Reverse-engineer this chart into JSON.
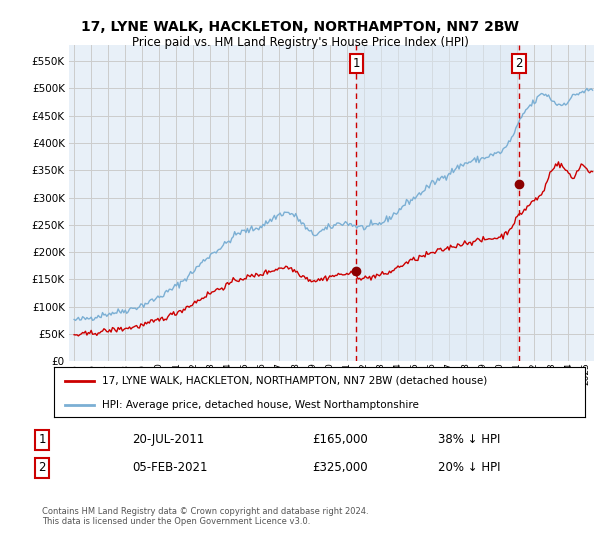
{
  "title": "17, LYNE WALK, HACKLETON, NORTHAMPTON, NN7 2BW",
  "subtitle": "Price paid vs. HM Land Registry's House Price Index (HPI)",
  "legend_line1": "17, LYNE WALK, HACKLETON, NORTHAMPTON, NN7 2BW (detached house)",
  "legend_line2": "HPI: Average price, detached house, West Northamptonshire",
  "footnote": "Contains HM Land Registry data © Crown copyright and database right 2024.\nThis data is licensed under the Open Government Licence v3.0.",
  "sale1_label": "1",
  "sale1_date": "20-JUL-2011",
  "sale1_price": "£165,000",
  "sale1_hpi": "38% ↓ HPI",
  "sale2_label": "2",
  "sale2_date": "05-FEB-2021",
  "sale2_price": "£325,000",
  "sale2_hpi": "20% ↓ HPI",
  "hpi_color": "#7bafd4",
  "hpi_fill_color": "#ddeaf5",
  "price_color": "#cc0000",
  "marker_color": "#8b0000",
  "vline_color": "#cc0000",
  "background_color": "#ffffff",
  "grid_color": "#cccccc",
  "plot_bg_color": "#e8f0f8",
  "ylim": [
    0,
    580000
  ],
  "yticks": [
    0,
    50000,
    100000,
    150000,
    200000,
    250000,
    300000,
    350000,
    400000,
    450000,
    500000,
    550000
  ],
  "sale1_x_year": 2011.55,
  "sale1_y": 165000,
  "sale2_x_year": 2021.09,
  "sale2_y": 325000,
  "xlim_left": 1994.7,
  "xlim_right": 2025.5
}
